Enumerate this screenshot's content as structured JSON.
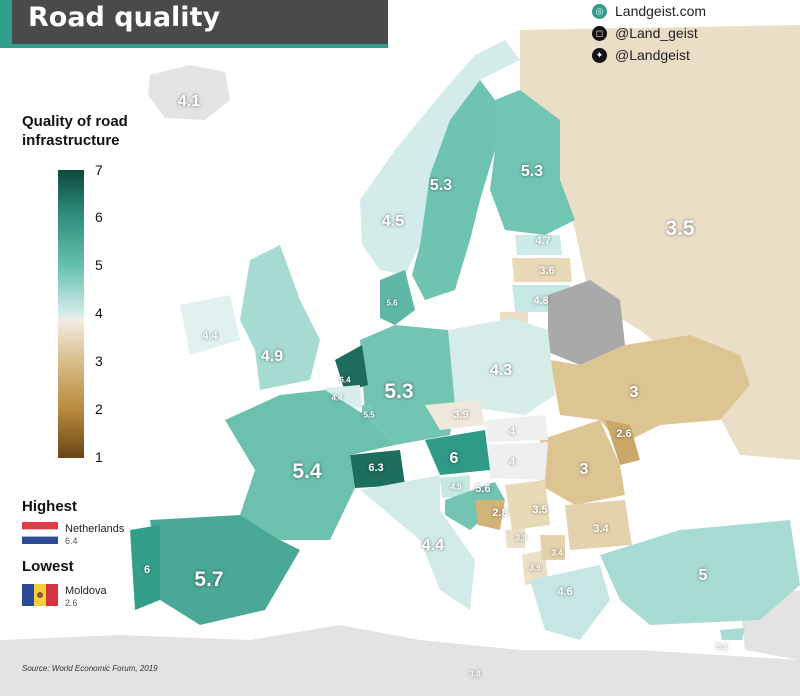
{
  "title": "Road quality",
  "brand": {
    "website": "Landgeist.com",
    "instagram": "@Land_geist",
    "twitter": "@Landgeist"
  },
  "legend": {
    "title": "Quality of road infrastructure",
    "ticks": [
      "7",
      "6",
      "5",
      "4",
      "3",
      "2",
      "1"
    ],
    "min": 1,
    "max": 7
  },
  "highest": {
    "heading": "Highest",
    "country": "Netherlands",
    "value": "6.4"
  },
  "lowest": {
    "heading": "Lowest",
    "country": "Moldova",
    "value": "2.6"
  },
  "source": "Source: World Economic Forum, 2019",
  "colors": {
    "title_bg": "#4a4a4a",
    "accent": "#2f9e8a",
    "sea": "#ffffff",
    "land_no_data": "#e3e3e3",
    "belarus_no_data": "#a9a9a9"
  },
  "map_values": [
    {
      "country": "Iceland",
      "value": "4.1"
    },
    {
      "country": "Ireland",
      "value": "4.4"
    },
    {
      "country": "United Kingdom",
      "value": "4.9"
    },
    {
      "country": "Norway",
      "value": "4.5"
    },
    {
      "country": "Sweden",
      "value": "5.3"
    },
    {
      "country": "Finland",
      "value": "5.3"
    },
    {
      "country": "Russia",
      "value": "3.5"
    },
    {
      "country": "Estonia",
      "value": "4.7"
    },
    {
      "country": "Latvia",
      "value": "3.6"
    },
    {
      "country": "Lithuania",
      "value": "4.8"
    },
    {
      "country": "Denmark",
      "value": "5.6"
    },
    {
      "country": "Netherlands",
      "value": "6.4"
    },
    {
      "country": "Belgium",
      "value": "4.4"
    },
    {
      "country": "Luxembourg",
      "value": "5.5"
    },
    {
      "country": "Germany",
      "value": "5.3"
    },
    {
      "country": "Poland",
      "value": "4.3"
    },
    {
      "country": "Ukraine",
      "value": "3"
    },
    {
      "country": "Czechia",
      "value": "3.9"
    },
    {
      "country": "Slovakia",
      "value": "4"
    },
    {
      "country": "Hungary",
      "value": "4"
    },
    {
      "country": "Moldova",
      "value": "2.6"
    },
    {
      "country": "Romania",
      "value": "3"
    },
    {
      "country": "France",
      "value": "5.4"
    },
    {
      "country": "Switzerland",
      "value": "6.3"
    },
    {
      "country": "Austria",
      "value": "6"
    },
    {
      "country": "Slovenia",
      "value": "4.9"
    },
    {
      "country": "Croatia",
      "value": "5.6"
    },
    {
      "country": "Bosnia and Herzegovina",
      "value": "2.8"
    },
    {
      "country": "Serbia",
      "value": "3.5"
    },
    {
      "country": "Bulgaria",
      "value": "3.4"
    },
    {
      "country": "Montenegro",
      "value": "3.9"
    },
    {
      "country": "North Macedonia",
      "value": "3.4"
    },
    {
      "country": "Albania",
      "value": "3.9"
    },
    {
      "country": "Greece",
      "value": "4.6"
    },
    {
      "country": "Turkey",
      "value": "5"
    },
    {
      "country": "Cyprus",
      "value": "5.1"
    },
    {
      "country": "Italy",
      "value": "4.4"
    },
    {
      "country": "Spain",
      "value": "5.7"
    },
    {
      "country": "Portugal",
      "value": "6"
    },
    {
      "country": "Malta",
      "value": "3.8"
    }
  ]
}
